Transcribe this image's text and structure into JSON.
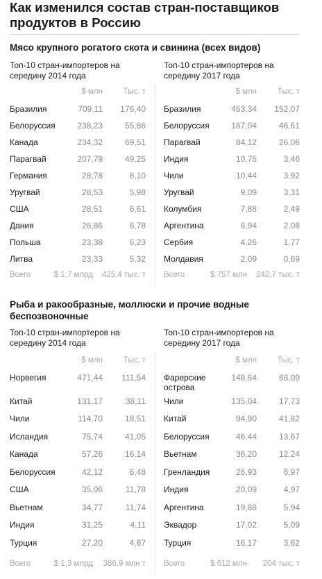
{
  "title": "Как изменился состав стран-поставщиков продуктов в Россию",
  "sections": [
    {
      "heading": "Мясо крупного рогатого скота и свинина (всех видов)",
      "left": {
        "subtitle": "Топ-10 стран-импортеров на середину 2014 года",
        "col1": "$ млн",
        "col2": "Тыс. т",
        "rows": [
          {
            "name": "Бразилия",
            "v1": "709,11",
            "v2": "176,40"
          },
          {
            "name": "Белоруссия",
            "v1": "238,23",
            "v2": "55,86"
          },
          {
            "name": "Канада",
            "v1": "234,32",
            "v2": "69,51"
          },
          {
            "name": "Парагвай",
            "v1": "207,79",
            "v2": "49,25"
          },
          {
            "name": "Германия",
            "v1": "28,78",
            "v2": "8,10"
          },
          {
            "name": "Уругвай",
            "v1": "28,53",
            "v2": "5,98"
          },
          {
            "name": "США",
            "v1": "28,51",
            "v2": "6,61"
          },
          {
            "name": "Дания",
            "v1": "26,86",
            "v2": "6,78"
          },
          {
            "name": "Польша",
            "v1": "23,38",
            "v2": "6,23"
          },
          {
            "name": "Литва",
            "v1": "23,33",
            "v2": "5,32"
          }
        ],
        "total": {
          "label": "Всего",
          "v1": "$ 1,7 млрд",
          "v2": "425,4 тыс. т"
        }
      },
      "right": {
        "subtitle": "Топ-10 стран-импортеров на середину 2017 года",
        "col1": "$ млн",
        "col2": "Тыс. т",
        "rows": [
          {
            "name": "Бразилия",
            "v1": "453,34",
            "v2": "152,07"
          },
          {
            "name": "Белоруссия",
            "v1": "167,04",
            "v2": "46,61"
          },
          {
            "name": "Парагвай",
            "v1": "84,12",
            "v2": "26,06"
          },
          {
            "name": "Индия",
            "v1": "10,75",
            "v2": "3,46"
          },
          {
            "name": "Чили",
            "v1": "10,44",
            "v2": "3,92"
          },
          {
            "name": "Уругвай",
            "v1": "9,09",
            "v2": "3,31"
          },
          {
            "name": "Колумбия",
            "v1": "7,88",
            "v2": "2,49"
          },
          {
            "name": "Аргентина",
            "v1": "6,94",
            "v2": "2,08"
          },
          {
            "name": "Сербия",
            "v1": "4,26",
            "v2": "1,77"
          },
          {
            "name": "Молдавия",
            "v1": "2,09",
            "v2": "0,69"
          }
        ],
        "total": {
          "label": "Всего",
          "v1": "$ 757 млн",
          "v2": "242,7 тыс. т"
        }
      }
    },
    {
      "heading": "Рыба и ракообразные, моллюски и прочие водные беспозвоночные",
      "left": {
        "subtitle": "Топ-10 стран-импортеров на середину 2014 года",
        "col1": "$ млн",
        "col2": "Тыс. т",
        "rows": [
          {
            "name": "Норвегия",
            "v1": "471,44",
            "v2": "111,54"
          },
          {
            "name": "Китай",
            "v1": "131,17",
            "v2": "38,11"
          },
          {
            "name": "Чили",
            "v1": "114,70",
            "v2": "18,51"
          },
          {
            "name": "Исландия",
            "v1": "75,74",
            "v2": "41,05"
          },
          {
            "name": "Канада",
            "v1": "57,26",
            "v2": "16,14"
          },
          {
            "name": "Белоруссия",
            "v1": "42,12",
            "v2": "6,48"
          },
          {
            "name": "США",
            "v1": "35,06",
            "v2": "11,78"
          },
          {
            "name": "Вьетнам",
            "v1": "34,77",
            "v2": "11,74"
          },
          {
            "name": "Индия",
            "v1": "31,25",
            "v2": "4,11"
          },
          {
            "name": "Турция",
            "v1": "27,20",
            "v2": "4,67"
          }
        ],
        "total": {
          "label": "Всего",
          "v1": "$ 1,3 млрд",
          "v2": "386,9 млн т"
        }
      },
      "right": {
        "subtitle": "Топ-10 стран-импортеров на середину 2017 года",
        "col1": "$ млн",
        "col2": "Тыс. т",
        "rows": [
          {
            "name": "Фарерские острова",
            "v1": "148,64",
            "v2": "68,09"
          },
          {
            "name": "Чили",
            "v1": "135,04",
            "v2": "17,73"
          },
          {
            "name": "Китай",
            "v1": "94,90",
            "v2": "41,82"
          },
          {
            "name": "Белоруссия",
            "v1": "46,44",
            "v2": "13,67"
          },
          {
            "name": "Вьетнам",
            "v1": "36,20",
            "v2": "12,24"
          },
          {
            "name": "Гренландия",
            "v1": "26,93",
            "v2": "6,97"
          },
          {
            "name": "Индия",
            "v1": "20,09",
            "v2": "4,97"
          },
          {
            "name": "Аргентина",
            "v1": "19,88",
            "v2": "5,94"
          },
          {
            "name": "Эквадор",
            "v1": "17,02",
            "v2": "5,09"
          },
          {
            "name": "Турция",
            "v1": "16,17",
            "v2": "3,62"
          }
        ],
        "total": {
          "label": "Всего",
          "v1": "$ 612 млн",
          "v2": "204 тыс. т"
        }
      }
    }
  ]
}
